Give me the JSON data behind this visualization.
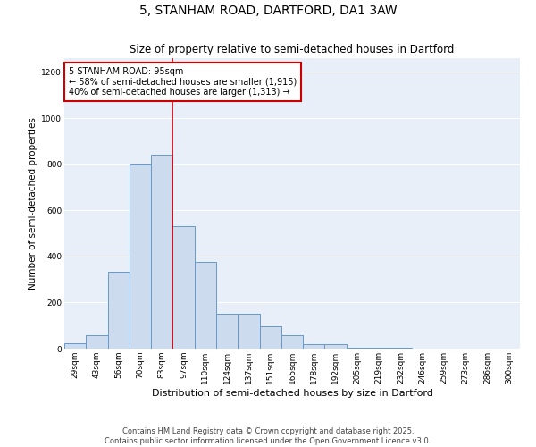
{
  "title1": "5, STANHAM ROAD, DARTFORD, DA1 3AW",
  "title2": "Size of property relative to semi-detached houses in Dartford",
  "xlabel": "Distribution of semi-detached houses by size in Dartford",
  "ylabel": "Number of semi-detached properties",
  "categories": [
    "29sqm",
    "43sqm",
    "56sqm",
    "70sqm",
    "83sqm",
    "97sqm",
    "110sqm",
    "124sqm",
    "137sqm",
    "151sqm",
    "165sqm",
    "178sqm",
    "192sqm",
    "205sqm",
    "219sqm",
    "232sqm",
    "246sqm",
    "259sqm",
    "273sqm",
    "286sqm",
    "300sqm"
  ],
  "values": [
    25,
    58,
    335,
    800,
    843,
    530,
    375,
    150,
    150,
    95,
    58,
    20,
    18,
    5,
    3,
    2,
    1,
    0,
    0,
    0,
    0
  ],
  "bar_color": "#ccdcee",
  "bar_edge_color": "#6699cc",
  "vline_color": "#cc0000",
  "annotation_text": "5 STANHAM ROAD: 95sqm\n← 58% of semi-detached houses are smaller (1,915)\n40% of semi-detached houses are larger (1,313) →",
  "annotation_box_color": "white",
  "annotation_box_edge_color": "#cc0000",
  "ylim": [
    0,
    1260
  ],
  "yticks": [
    0,
    200,
    400,
    600,
    800,
    1000,
    1200
  ],
  "bg_color": "#e8eff8",
  "footer_text": "Contains HM Land Registry data © Crown copyright and database right 2025.\nContains public sector information licensed under the Open Government Licence v3.0.",
  "title1_fontsize": 10,
  "title2_fontsize": 8.5,
  "xlabel_fontsize": 8,
  "ylabel_fontsize": 7.5,
  "tick_fontsize": 6.5,
  "annotation_fontsize": 7,
  "footer_fontsize": 6
}
